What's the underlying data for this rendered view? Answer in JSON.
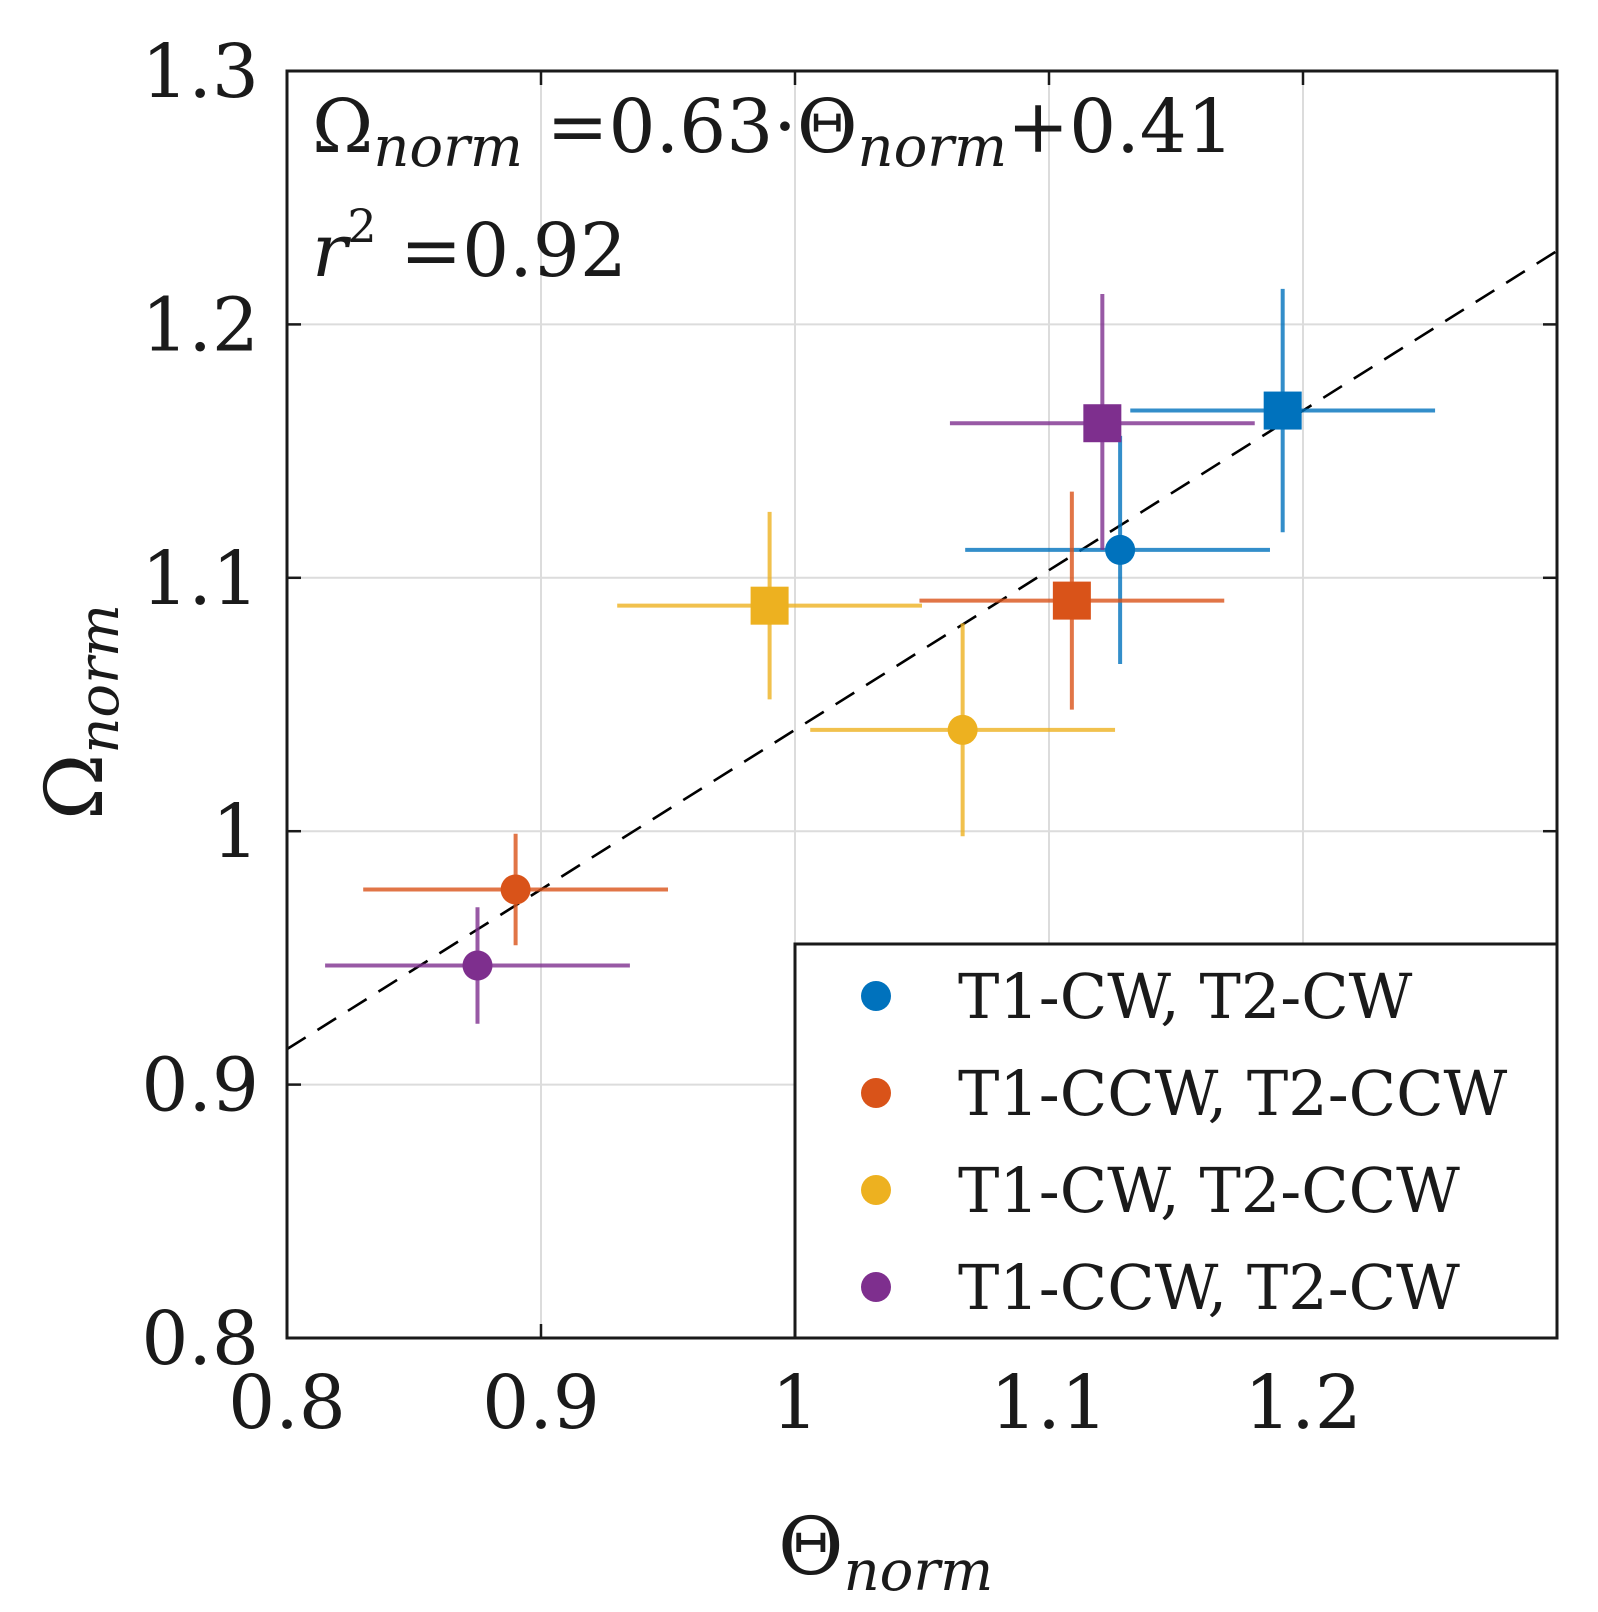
{
  "chart_data": {
    "type": "scatter",
    "xlim": [
      0.8,
      1.3
    ],
    "ylim": [
      0.8,
      1.3
    ],
    "x_ticks": [
      "0.8",
      "0.9",
      "1",
      "1.1",
      "1.2"
    ],
    "y_ticks": [
      "0.8",
      "0.9",
      "1",
      "1.1",
      "1.2",
      "1.3"
    ],
    "grid": true,
    "xlabel": {
      "main": "Θ",
      "sub": "norm"
    },
    "ylabel": {
      "main": "Ω",
      "sub": "norm"
    },
    "annotation": {
      "line1": {
        "a": "Ω",
        "a_sub": "norm",
        "b": " =0.63·Θ",
        "b_sub": "norm",
        "c": "+0.41"
      },
      "line2": {
        "var": "r",
        "sup": "2",
        "rest": " =0.92"
      }
    },
    "fit": {
      "slope": 0.63,
      "intercept": 0.41,
      "style": "dashed",
      "color": "#000000"
    },
    "legend_position": "bottom-right",
    "series": [
      {
        "name": "T1-CW, T2-CW",
        "color": "#0072BD",
        "points": [
          {
            "marker": "circle",
            "x": 1.128,
            "y": 1.111,
            "xerr": [
              1.067,
              1.187
            ],
            "yerr": [
              1.066,
              1.156
            ]
          },
          {
            "marker": "square",
            "x": 1.192,
            "y": 1.166,
            "xerr": [
              1.132,
              1.252
            ],
            "yerr": [
              1.118,
              1.214
            ]
          }
        ]
      },
      {
        "name": "T1-CCW, T2-CCW",
        "color": "#D95319",
        "points": [
          {
            "marker": "circle",
            "x": 0.89,
            "y": 0.977,
            "xerr": [
              0.83,
              0.95
            ],
            "yerr": [
              0.955,
              0.999
            ]
          },
          {
            "marker": "square",
            "x": 1.109,
            "y": 1.091,
            "xerr": [
              1.049,
              1.169
            ],
            "yerr": [
              1.048,
              1.134
            ]
          }
        ]
      },
      {
        "name": "T1-CW, T2-CCW",
        "color": "#EDB120",
        "points": [
          {
            "marker": "circle",
            "x": 1.066,
            "y": 1.04,
            "xerr": [
              1.006,
              1.126
            ],
            "yerr": [
              0.998,
              1.082
            ]
          },
          {
            "marker": "square",
            "x": 0.99,
            "y": 1.089,
            "xerr": [
              0.93,
              1.05
            ],
            "yerr": [
              1.052,
              1.126
            ]
          }
        ]
      },
      {
        "name": "T1-CCW, T2-CW",
        "color": "#7E2F8E",
        "points": [
          {
            "marker": "circle",
            "x": 0.875,
            "y": 0.947,
            "xerr": [
              0.815,
              0.935
            ],
            "yerr": [
              0.924,
              0.97
            ]
          },
          {
            "marker": "square",
            "x": 1.121,
            "y": 1.161,
            "xerr": [
              1.061,
              1.181
            ],
            "yerr": [
              1.111,
              1.212
            ]
          }
        ]
      }
    ]
  }
}
